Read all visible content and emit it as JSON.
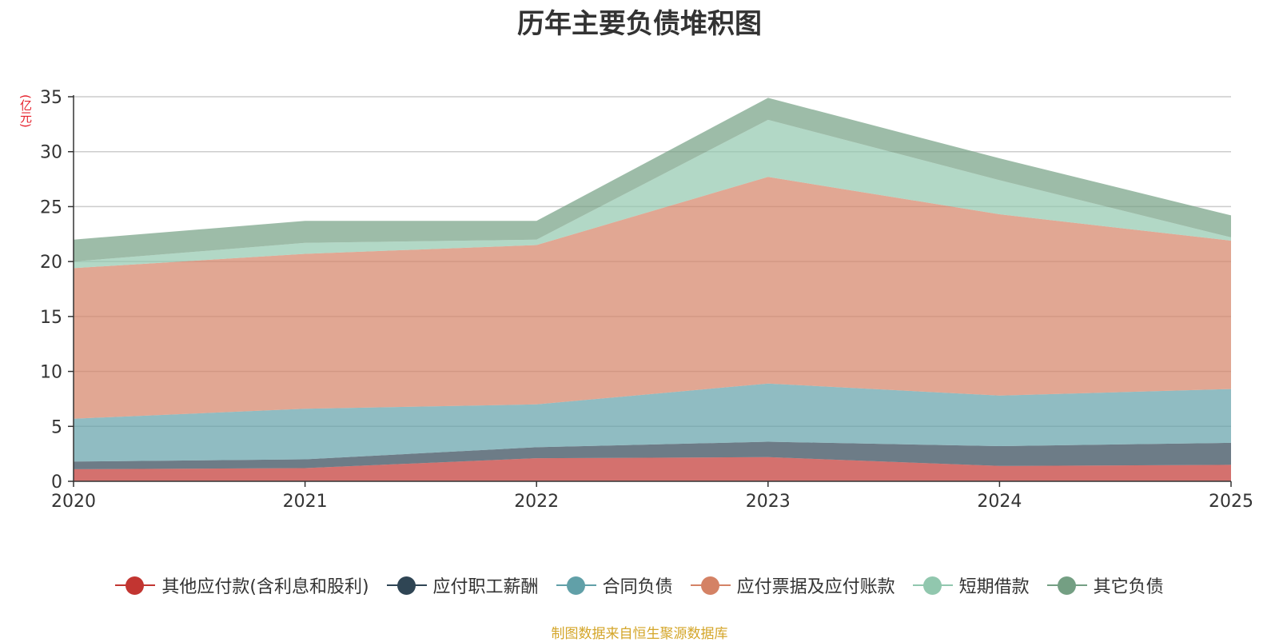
{
  "chart_data": {
    "type": "area",
    "stacked": true,
    "title": "历年主要负债堆积图",
    "unit": "(亿元)",
    "categories": [
      "2020",
      "2021",
      "2022",
      "2023",
      "2024",
      "2025"
    ],
    "ylim": [
      0,
      35
    ],
    "yticks": [
      0,
      5,
      10,
      15,
      20,
      25,
      30,
      35
    ],
    "grid": true,
    "legend_position": "bottom",
    "series": [
      {
        "name": "其他应付款(含利息和股利)",
        "color": "#c23531",
        "values": [
          1.1,
          1.2,
          2.1,
          2.2,
          1.4,
          1.5
        ]
      },
      {
        "name": "应付职工薪酬",
        "color": "#2f4554",
        "values": [
          0.7,
          0.8,
          1.0,
          1.4,
          1.8,
          2.0
        ]
      },
      {
        "name": "合同负债",
        "color": "#61a0a8",
        "values": [
          3.9,
          4.6,
          3.9,
          5.3,
          4.6,
          4.9
        ]
      },
      {
        "name": "应付票据及应付账款",
        "color": "#d48265",
        "values": [
          13.7,
          14.1,
          14.5,
          18.8,
          16.5,
          13.5
        ]
      },
      {
        "name": "短期借款",
        "color": "#91c7ae",
        "values": [
          0.6,
          1.0,
          0.5,
          5.2,
          3.1,
          0.3
        ]
      },
      {
        "name": "其它负债",
        "color": "#749f83",
        "values": [
          2.0,
          2.0,
          1.7,
          2.0,
          2.0,
          2.0
        ]
      }
    ]
  },
  "footer": {
    "source": "制图数据来自恒生聚源数据库"
  }
}
